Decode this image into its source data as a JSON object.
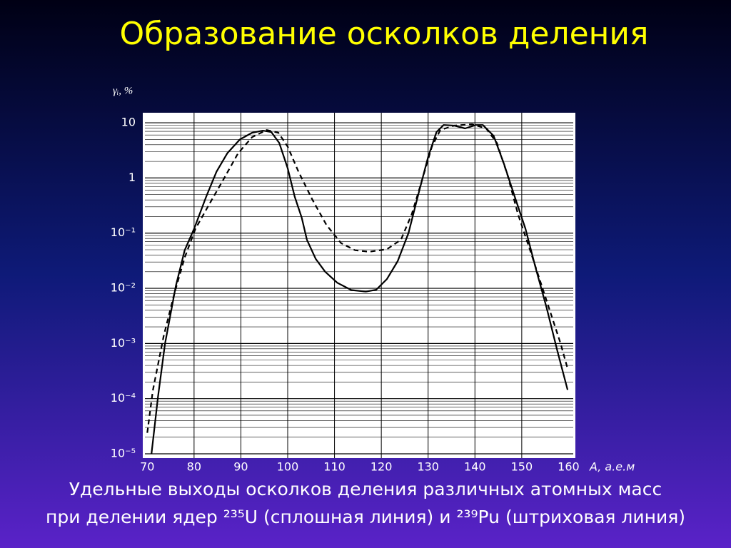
{
  "chart_data": {
    "type": "line",
    "title": "Образование осколков деления",
    "y_label": "γᵢ, %",
    "x_label": "A, а.е.м",
    "caption": [
      "Удельные выходы осколков деления различных атомных масс",
      "при делении ядер ²³⁵U  (сплошная линия) и ²³⁹Pu (штриховая линия)"
    ],
    "y_scale": "log",
    "grid": true,
    "minor_grid": true,
    "xlim": [
      69.5,
      161
    ],
    "xticks": [
      70,
      80,
      90,
      100,
      110,
      120,
      130,
      140,
      150,
      160
    ],
    "ylim": [
      1e-05,
      13.5
    ],
    "yticks": [
      {
        "value": 1e-05,
        "label": "10⁻⁵"
      },
      {
        "value": 0.0001,
        "label": "10⁻⁴"
      },
      {
        "value": 0.001,
        "label": "10⁻³"
      },
      {
        "value": 0.01,
        "label": "10⁻²"
      },
      {
        "value": 0.1,
        "label": "10⁻¹"
      },
      1,
      10
    ],
    "series": [
      {
        "color": "#000000",
        "dash": false,
        "x": [
          70.9,
          72.3,
          73.8,
          76.1,
          78.0,
          80,
          82.6,
          84.8,
          87.1,
          89.8,
          92.4,
          94.7,
          96.5,
          98.2,
          100,
          101.5,
          103,
          104.1,
          106,
          108,
          110.6,
          113.6,
          116.7,
          118.9,
          121.2,
          123.5,
          125.8,
          128,
          130,
          131.8,
          133.3,
          135.6,
          137.9,
          140.2,
          141.7,
          144,
          146.2,
          148.5,
          150.8,
          153,
          155.3,
          157.6,
          159.8
        ],
        "values": [
          1e-05,
          0.00011,
          0.001,
          0.011,
          0.049,
          0.12,
          0.46,
          1.3,
          2.8,
          5.0,
          6.6,
          7.2,
          6.8,
          4.3,
          1.5,
          0.46,
          0.19,
          0.076,
          0.034,
          0.02,
          0.0126,
          0.0093,
          0.0087,
          0.0094,
          0.0147,
          0.031,
          0.1,
          0.54,
          2.4,
          6.8,
          9.1,
          8.9,
          7.9,
          9.1,
          9.1,
          5.8,
          1.8,
          0.46,
          0.12,
          0.023,
          0.0045,
          0.00074,
          0.000144
        ]
      },
      {
        "color": "#000000",
        "dash": true,
        "x": [
          70,
          71.2,
          73.5,
          75.8,
          78,
          80.3,
          83.3,
          86.4,
          89.4,
          92.4,
          95.5,
          98,
          100,
          102.3,
          105.3,
          108.3,
          111.4,
          114.4,
          117.4,
          121.2,
          124.2,
          126.5,
          128.8,
          130.8,
          132.6,
          135.6,
          139.4,
          142.4,
          144.7,
          147,
          149.2,
          152.3,
          155.3,
          158.3,
          159.8
        ],
        "values": [
          2.4e-05,
          0.00014,
          0.00135,
          0.0081,
          0.036,
          0.12,
          0.34,
          0.98,
          2.8,
          5.5,
          7.4,
          6.6,
          3.7,
          1.3,
          0.4,
          0.14,
          0.066,
          0.049,
          0.046,
          0.051,
          0.076,
          0.22,
          0.98,
          3.7,
          7.4,
          8.9,
          9.4,
          7.9,
          4.3,
          1.1,
          0.22,
          0.036,
          0.006,
          0.001,
          0.00035
        ]
      }
    ]
  }
}
